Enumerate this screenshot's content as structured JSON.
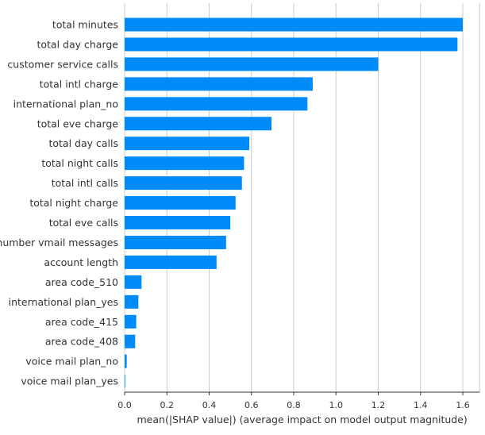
{
  "chart_data": {
    "type": "bar",
    "orientation": "horizontal",
    "title": "",
    "xlabel": "mean(|SHAP value|) (average impact on model output magnitude)",
    "ylabel": "",
    "xlim": [
      0,
      1.68
    ],
    "grid": "vertical",
    "bar_color": "#008bfb",
    "x_ticks": [
      0.0,
      0.2,
      0.4,
      0.6,
      0.8,
      1.0,
      1.2,
      1.4,
      1.6
    ],
    "x_tick_labels": [
      "0.0",
      "0.2",
      "0.4",
      "0.6",
      "0.8",
      "1.0",
      "1.2",
      "1.4",
      "1.6"
    ],
    "categories": [
      "total minutes",
      "total day charge",
      "customer service calls",
      "total intl charge",
      "international plan_no",
      "total eve charge",
      "total day calls",
      "total night calls",
      "total intl calls",
      "total night charge",
      "total eve calls",
      "number vmail messages",
      "account length",
      "area code_510",
      "international plan_yes",
      "area code_415",
      "area code_408",
      "voice mail plan_no",
      "voice mail plan_yes"
    ],
    "values": [
      1.6,
      1.575,
      1.2,
      0.89,
      0.865,
      0.695,
      0.59,
      0.565,
      0.555,
      0.525,
      0.5,
      0.48,
      0.435,
      0.08,
      0.065,
      0.055,
      0.05,
      0.01,
      0.003
    ]
  }
}
